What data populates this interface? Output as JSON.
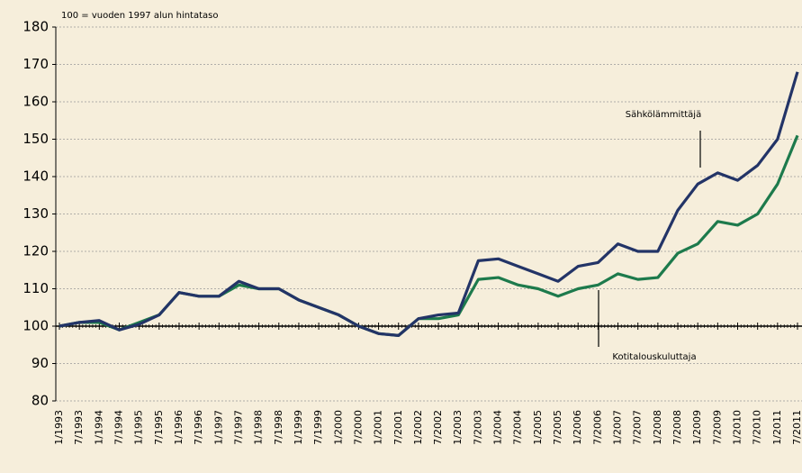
{
  "chart_data": {
    "type": "line",
    "subtitle": "100 = vuoden 1997 alun hintataso",
    "categories": [
      "1/1993",
      "7/1993",
      "1/1994",
      "7/1994",
      "1/1995",
      "7/1995",
      "1/1996",
      "7/1996",
      "1/1997",
      "7/1997",
      "1/1998",
      "7/1998",
      "1/1999",
      "7/1999",
      "1/2000",
      "7/2000",
      "1/2001",
      "7/2001",
      "1/2002",
      "7/2002",
      "1/2003",
      "7/2003",
      "1/2004",
      "7/2004",
      "1/2005",
      "7/2005",
      "1/2006",
      "7/2006",
      "1/2007",
      "7/2007",
      "1/2008",
      "7/2008",
      "1/2009",
      "7/2009",
      "1/2010",
      "7/2010",
      "1/2011",
      "7/2011"
    ],
    "series": [
      {
        "name": "Sähkölämmittäjä",
        "color": "#233467",
        "values": [
          100,
          101,
          101.5,
          99,
          100.5,
          103,
          109,
          108,
          108,
          112,
          110,
          110,
          107,
          105,
          103,
          100,
          98,
          97.5,
          102,
          103,
          103.5,
          117.5,
          118,
          116,
          114,
          112,
          116,
          117,
          122,
          120,
          120,
          131,
          138,
          141,
          139,
          143,
          150,
          168
        ]
      },
      {
        "name": "Kotitalouskuluttaja",
        "color": "#1d7a4c",
        "values": [
          100,
          101,
          101,
          99,
          101,
          103,
          109,
          108,
          108,
          111,
          110,
          110,
          107,
          105,
          103,
          100,
          98,
          97.5,
          102,
          102,
          103,
          112.5,
          113,
          111,
          110,
          108,
          110,
          111,
          114,
          112.5,
          113,
          119.5,
          122,
          128,
          127,
          130,
          138,
          151
        ]
      }
    ],
    "ylim": [
      80,
      180
    ],
    "yticks": [
      80,
      90,
      100,
      110,
      120,
      130,
      140,
      150,
      160,
      170,
      180
    ],
    "grid": true
  }
}
